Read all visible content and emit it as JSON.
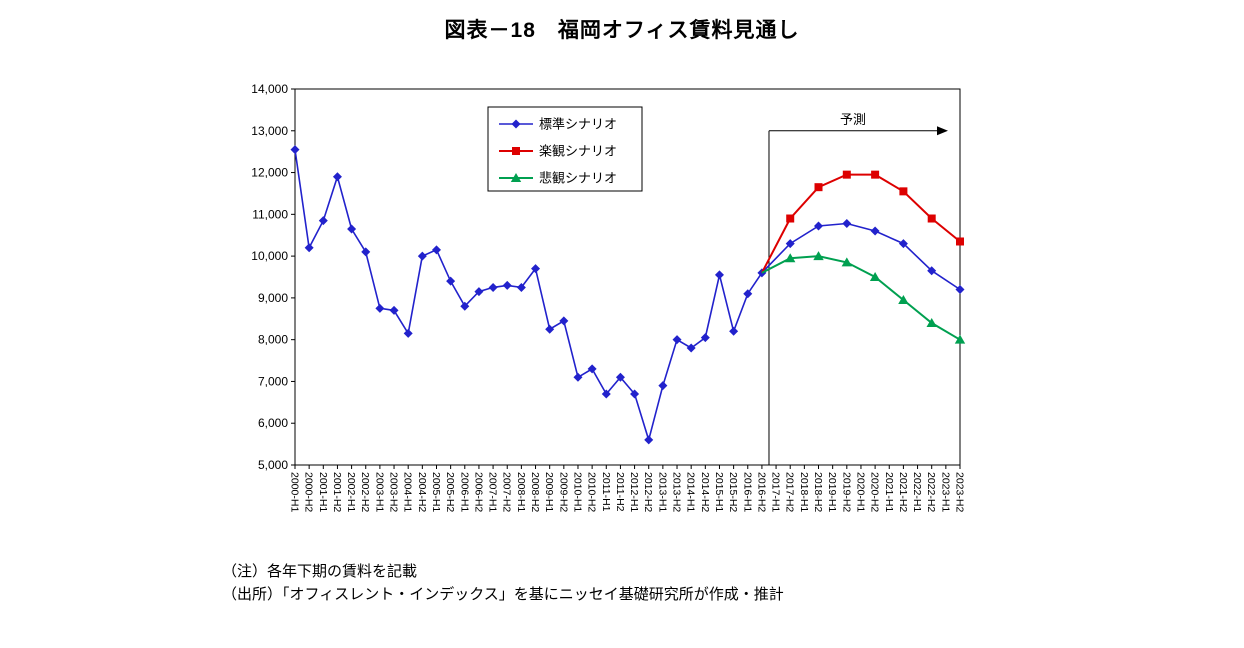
{
  "page": {
    "title": "図表－18　福岡オフィス賃料見通し",
    "notes": [
      "（注）各年下期の賃料を記載",
      "（出所）「オフィスレント・インデックス」を基にニッセイ基礎研究所が作成・推計"
    ]
  },
  "chart_data": {
    "type": "line",
    "title": "図表－18　福岡オフィス賃料見通し",
    "ylabel": "",
    "xlabel": "",
    "ylim": [
      5000,
      14000
    ],
    "ytick_step": 1000,
    "grid": false,
    "legend_position": "top-center-inside",
    "forecast": {
      "label": "予測",
      "divider_index": 33.5,
      "level": 13000
    },
    "x_labels": [
      "2000-H1",
      "2000-H2",
      "2001-H1",
      "2001-H2",
      "2002-H1",
      "2002-H2",
      "2003-H1",
      "2003-H2",
      "2004-H1",
      "2004-H2",
      "2005-H1",
      "2005-H2",
      "2006-H1",
      "2006-H2",
      "2007-H1",
      "2007-H2",
      "2008-H1",
      "2008-H2",
      "2009-H1",
      "2009-H2",
      "2010-H1",
      "2010-H2",
      "2011-H1",
      "2011-H2",
      "2012-H1",
      "2012-H2",
      "2013-H1",
      "2013-H2",
      "2014-H1",
      "2014-H2",
      "2015-H1",
      "2015-H2",
      "2016-H1",
      "2016-H2",
      "2017-H1",
      "2017-H2",
      "2018-H1",
      "2018-H2",
      "2019-H1",
      "2019-H2",
      "2020-H1",
      "2020-H2",
      "2021-H1",
      "2021-H2",
      "2022-H1",
      "2022-H2",
      "2023-H1",
      "2023-H2"
    ],
    "series": [
      {
        "name": "標準シナリオ",
        "color": "#2222CC",
        "marker": "diamond",
        "points": [
          [
            0,
            12550
          ],
          [
            1,
            10200
          ],
          [
            2,
            10850
          ],
          [
            3,
            11900
          ],
          [
            4,
            10650
          ],
          [
            5,
            10100
          ],
          [
            6,
            8750
          ],
          [
            7,
            8700
          ],
          [
            8,
            8150
          ],
          [
            9,
            10000
          ],
          [
            10,
            10150
          ],
          [
            11,
            9400
          ],
          [
            12,
            8800
          ],
          [
            13,
            9150
          ],
          [
            14,
            9250
          ],
          [
            15,
            9300
          ],
          [
            16,
            9250
          ],
          [
            17,
            9700
          ],
          [
            18,
            8250
          ],
          [
            19,
            8450
          ],
          [
            20,
            7100
          ],
          [
            21,
            7300
          ],
          [
            22,
            6700
          ],
          [
            23,
            7100
          ],
          [
            24,
            6700
          ],
          [
            25,
            5600
          ],
          [
            26,
            6900
          ],
          [
            27,
            8000
          ],
          [
            28,
            7800
          ],
          [
            29,
            8050
          ],
          [
            30,
            9550
          ],
          [
            31,
            8200
          ],
          [
            32,
            9100
          ],
          [
            33,
            9600
          ],
          [
            35,
            10300
          ],
          [
            37,
            10720
          ],
          [
            39,
            10780
          ],
          [
            41,
            10600
          ],
          [
            43,
            10300
          ],
          [
            45,
            9650
          ],
          [
            47,
            9200
          ]
        ]
      },
      {
        "name": "楽観シナリオ",
        "color": "#DD0000",
        "marker": "square",
        "points": [
          [
            33,
            9600,
            "nm"
          ],
          [
            35,
            10900
          ],
          [
            37,
            11650
          ],
          [
            39,
            11950
          ],
          [
            41,
            11950
          ],
          [
            43,
            11550
          ],
          [
            45,
            10900
          ],
          [
            47,
            10350
          ]
        ]
      },
      {
        "name": "悲観シナリオ",
        "color": "#00A050",
        "marker": "triangle",
        "points": [
          [
            33,
            9600,
            "nm"
          ],
          [
            35,
            9950
          ],
          [
            37,
            10000
          ],
          [
            39,
            9850
          ],
          [
            41,
            9500
          ],
          [
            43,
            8950
          ],
          [
            45,
            8400
          ],
          [
            47,
            8000
          ]
        ]
      }
    ]
  }
}
